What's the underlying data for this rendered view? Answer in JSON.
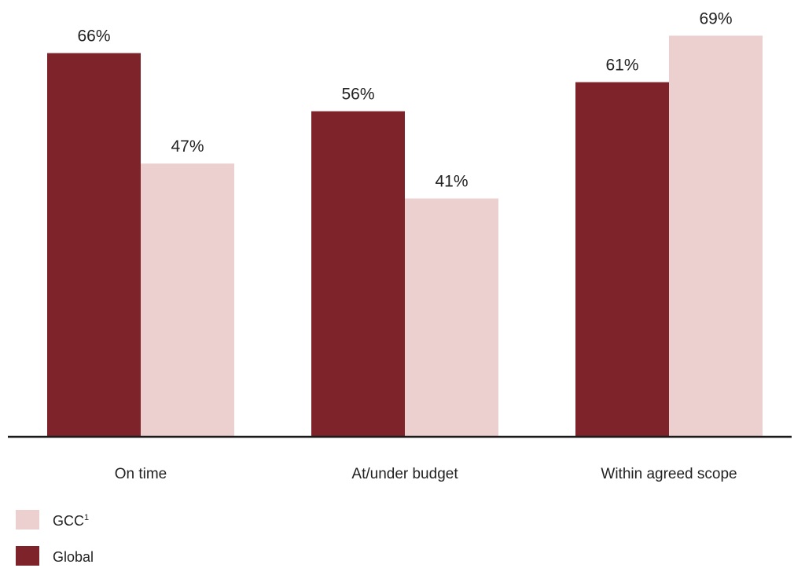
{
  "chart_data": {
    "type": "bar",
    "categories": [
      "On time",
      "At/under budget",
      "Within agreed scope"
    ],
    "series": [
      {
        "name": "Global",
        "values": [
          66,
          56,
          61
        ],
        "labels": [
          "66%",
          "56%",
          "61%"
        ],
        "color": "#7d2329"
      },
      {
        "name": "GCC",
        "name_sup": "1",
        "values": [
          47,
          41,
          69
        ],
        "labels": [
          "47%",
          "41%",
          "69%"
        ],
        "color": "#ecd0d0"
      }
    ],
    "ylim": [
      0,
      100
    ],
    "value_suffix": "%",
    "grid": false,
    "legend_order": [
      "GCC",
      "Global"
    ],
    "legend_position": "bottom-left",
    "axis_color": "#1a1a1a"
  }
}
